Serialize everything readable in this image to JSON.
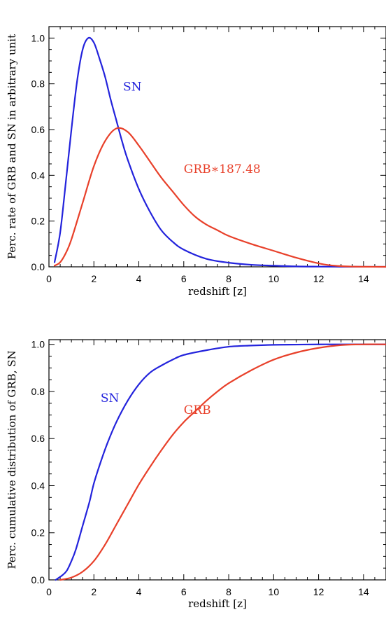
{
  "chart_data": [
    {
      "type": "line",
      "title": "",
      "xlabel": "redshift [z]",
      "ylabel": "Perc. rate of GRB and SN in arbitrary unit",
      "xlim": [
        0,
        15
      ],
      "ylim": [
        0,
        1.05
      ],
      "x_ticks": [
        "0",
        "2",
        "4",
        "6",
        "8",
        "10",
        "12",
        "14"
      ],
      "y_ticks": [
        "0.0",
        "0.2",
        "0.4",
        "0.6",
        "0.8",
        "1.0"
      ],
      "grid": false,
      "annotations": [
        {
          "text": "SN",
          "color": "#2323dc",
          "x": 3.3,
          "y": 0.77
        },
        {
          "text": "GRB∗187.48",
          "color": "#e8402a",
          "x": 6.0,
          "y": 0.41
        }
      ],
      "series": [
        {
          "color": "#2323dc",
          "x": [
            0.25,
            0.5,
            0.75,
            1.0,
            1.25,
            1.5,
            1.75,
            2.0,
            2.25,
            2.5,
            2.75,
            3.0,
            3.25,
            3.5,
            4.0,
            4.5,
            5.0,
            5.5,
            6.0,
            7.0,
            8.0,
            9.0,
            10.0,
            11.0,
            12.0,
            13.0,
            14.0,
            15.0
          ],
          "y": [
            0.02,
            0.15,
            0.37,
            0.6,
            0.81,
            0.95,
            1.0,
            0.98,
            0.91,
            0.83,
            0.73,
            0.64,
            0.55,
            0.47,
            0.34,
            0.24,
            0.16,
            0.11,
            0.075,
            0.035,
            0.018,
            0.009,
            0.005,
            0.002,
            0.001,
            0.0005,
            0.0002,
            0.0001
          ]
        },
        {
          "color": "#e8402a",
          "x": [
            0.25,
            0.5,
            0.75,
            1.0,
            1.5,
            2.0,
            2.5,
            3.0,
            3.5,
            4.0,
            4.5,
            5.0,
            5.5,
            6.0,
            6.5,
            7.0,
            7.5,
            8.0,
            9.0,
            10.0,
            11.0,
            12.0,
            12.5,
            13.0,
            13.5,
            14.0,
            15.0
          ],
          "y": [
            0.005,
            0.02,
            0.06,
            0.12,
            0.28,
            0.44,
            0.55,
            0.605,
            0.59,
            0.53,
            0.46,
            0.39,
            0.33,
            0.27,
            0.22,
            0.185,
            0.16,
            0.135,
            0.1,
            0.07,
            0.04,
            0.015,
            0.007,
            0.003,
            0.001,
            0.0005,
            0.0
          ]
        }
      ]
    },
    {
      "type": "line",
      "title": "",
      "xlabel": "redshift [z]",
      "ylabel": "Perc. cumulative distribution of GRB, SN",
      "xlim": [
        0,
        15
      ],
      "ylim": [
        0,
        1.02
      ],
      "x_ticks": [
        "0",
        "2",
        "4",
        "6",
        "8",
        "10",
        "12",
        "14"
      ],
      "y_ticks": [
        "0.0",
        "0.2",
        "0.4",
        "0.6",
        "0.8",
        "1.0"
      ],
      "grid": false,
      "annotations": [
        {
          "text": "SN",
          "color": "#2323dc",
          "x": 2.3,
          "y": 0.755
        },
        {
          "text": "GRB",
          "color": "#e8402a",
          "x": 6.0,
          "y": 0.705
        }
      ],
      "series": [
        {
          "color": "#2323dc",
          "x": [
            0.3,
            0.6,
            0.8,
            1.0,
            1.2,
            1.5,
            1.8,
            2.0,
            2.3,
            2.6,
            3.0,
            3.5,
            4.0,
            4.5,
            5.0,
            5.5,
            6.0,
            7.0,
            8.0,
            9.0,
            10.0,
            11.0,
            12.0,
            13.0,
            14.0,
            15.0
          ],
          "y": [
            0.0,
            0.02,
            0.04,
            0.08,
            0.13,
            0.23,
            0.33,
            0.41,
            0.5,
            0.58,
            0.67,
            0.76,
            0.83,
            0.88,
            0.91,
            0.935,
            0.955,
            0.975,
            0.99,
            0.995,
            0.998,
            0.999,
            1.0,
            1.0,
            1.0,
            1.0
          ]
        },
        {
          "color": "#e8402a",
          "x": [
            0.5,
            1.0,
            1.5,
            2.0,
            2.5,
            3.0,
            3.5,
            4.0,
            4.5,
            5.0,
            5.5,
            6.0,
            6.5,
            7.0,
            7.5,
            8.0,
            9.0,
            10.0,
            11.0,
            12.0,
            13.0,
            14.0,
            15.0
          ],
          "y": [
            0.0,
            0.01,
            0.035,
            0.08,
            0.15,
            0.235,
            0.32,
            0.405,
            0.48,
            0.55,
            0.615,
            0.67,
            0.715,
            0.76,
            0.8,
            0.835,
            0.89,
            0.935,
            0.965,
            0.985,
            0.997,
            1.0,
            1.0
          ]
        }
      ]
    }
  ]
}
